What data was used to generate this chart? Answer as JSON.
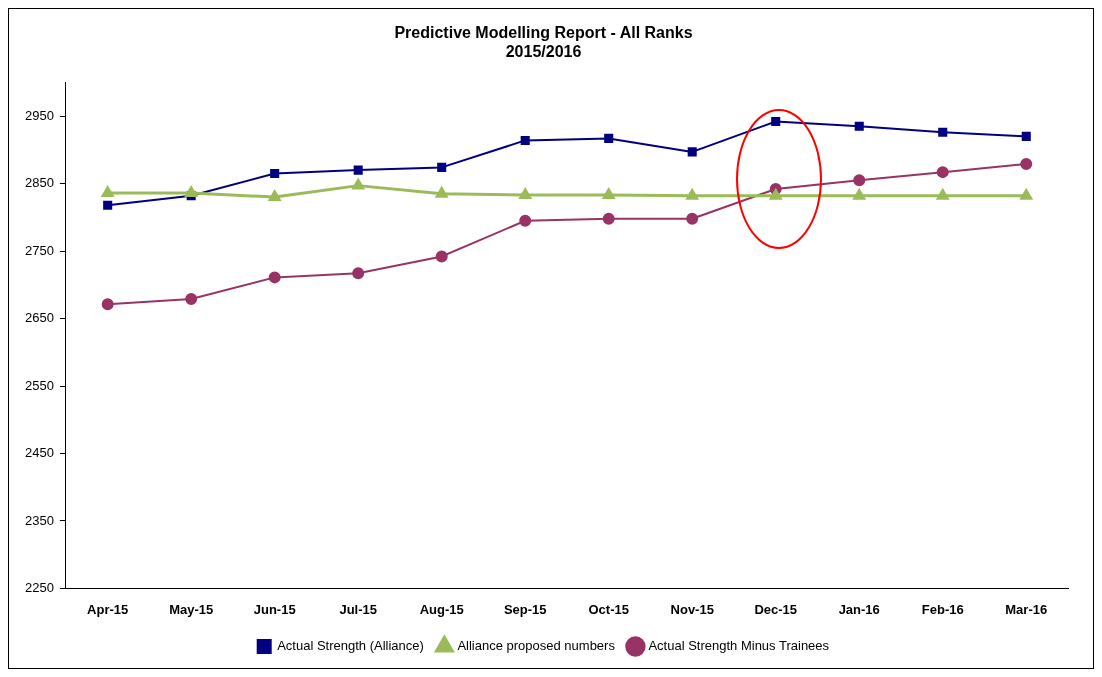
{
  "chart_data": {
    "type": "line",
    "title": [
      "Predictive Modelling Report - All Ranks",
      "2015/2016"
    ],
    "categories": [
      "Apr-15",
      "May-15",
      "Jun-15",
      "Jul-15",
      "Aug-15",
      "Sep-15",
      "Oct-15",
      "Nov-15",
      "Dec-15",
      "Jan-16",
      "Feb-16",
      "Mar-16"
    ],
    "series": [
      {
        "name": "Actual Strength (Alliance)",
        "color": "#000080",
        "marker": "square",
        "values": [
          2818,
          2832,
          2865,
          2870,
          2874,
          2914,
          2917,
          2897,
          2942,
          2935,
          2926,
          2920
        ]
      },
      {
        "name": "Alliance proposed numbers",
        "color": "#9bbb59",
        "marker": "triangle",
        "values": [
          2836,
          2836,
          2830,
          2847,
          2835,
          2833,
          2833,
          2832,
          2832,
          2832,
          2832,
          2832
        ]
      },
      {
        "name": "Actual Strength Minus Trainees",
        "color": "#993366",
        "marker": "circle",
        "values": [
          2671,
          2679,
          2711,
          2717,
          2742,
          2795,
          2798,
          2798,
          2842,
          2855,
          2867,
          2879
        ]
      }
    ],
    "ylim": [
      2250,
      3000
    ],
    "yticks": [
      2250,
      2350,
      2450,
      2550,
      2650,
      2750,
      2850,
      2950
    ],
    "grid": false,
    "legend": "bottom"
  }
}
